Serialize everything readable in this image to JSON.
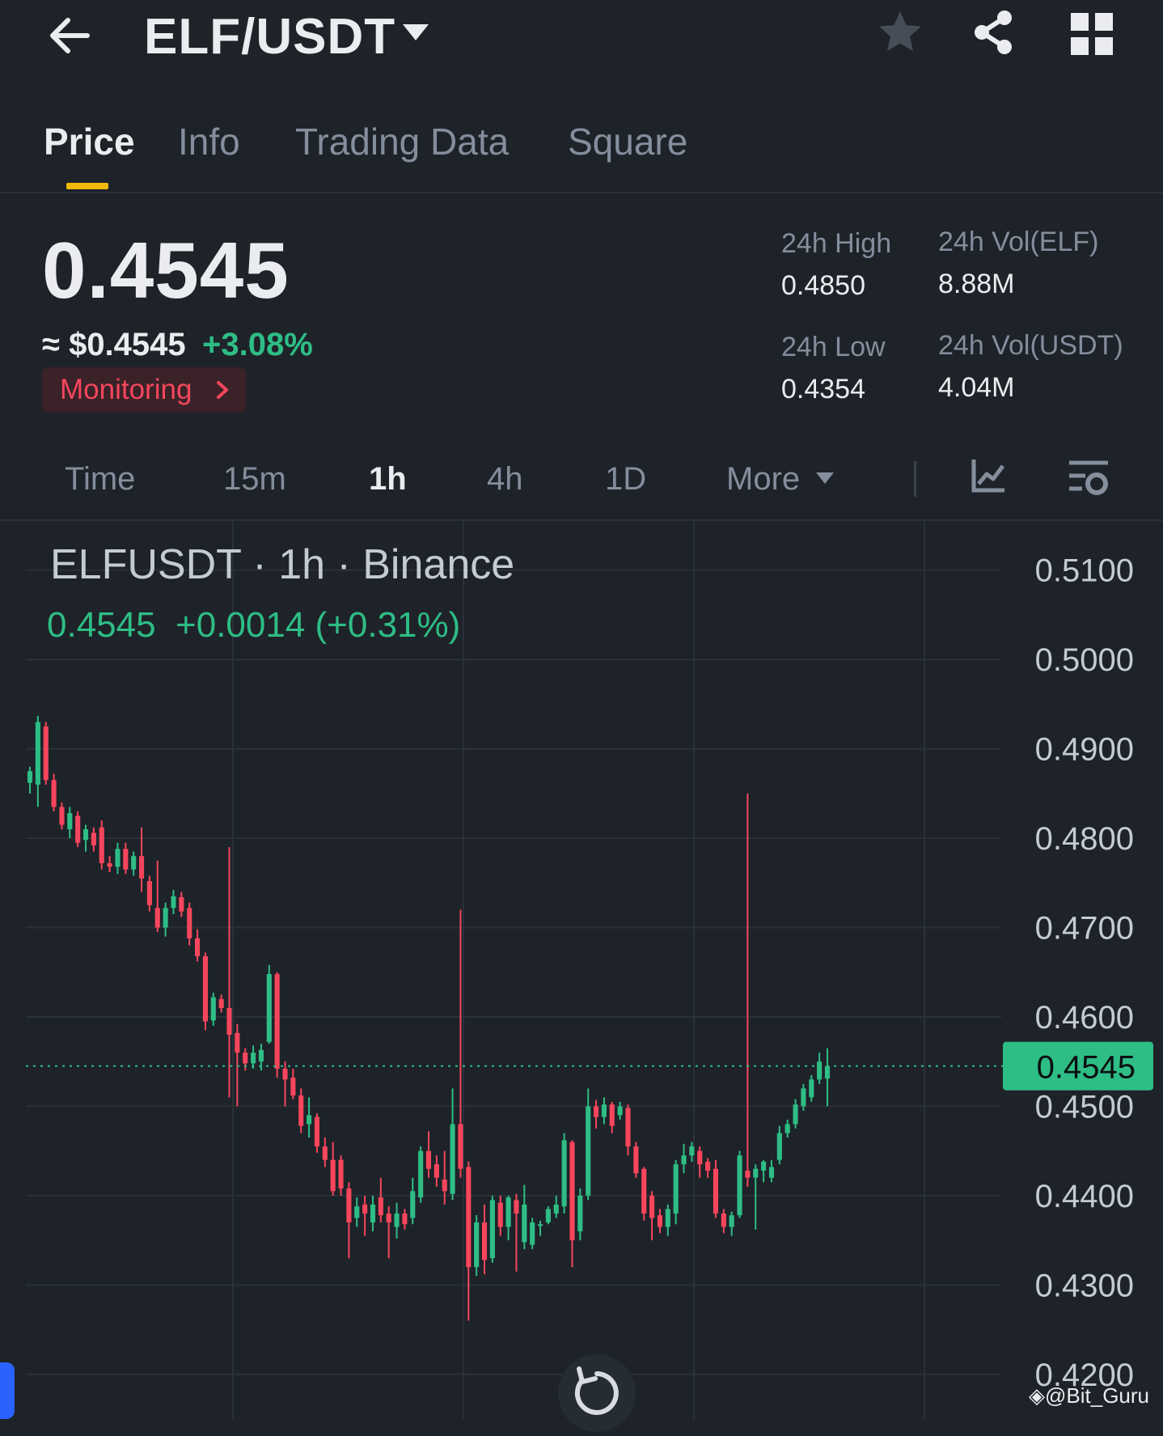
{
  "header": {
    "pair": "ELF/USDT"
  },
  "tabs": [
    {
      "label": "Price",
      "active": true
    },
    {
      "label": "Info",
      "active": false
    },
    {
      "label": "Trading Data",
      "active": false
    },
    {
      "label": "Square",
      "active": false
    }
  ],
  "ticker": {
    "last_price": "0.4545",
    "usd_price": "≈ $0.4545",
    "change_pct": "+3.08%",
    "monitoring_label": "Monitoring"
  },
  "stats": {
    "high_label": "24h High",
    "high_value": "0.4850",
    "low_label": "24h Low",
    "low_value": "0.4354",
    "vol_elf_label": "24h Vol(ELF)",
    "vol_elf_value": "8.88M",
    "vol_usdt_label": "24h Vol(USDT)",
    "vol_usdt_value": "4.04M"
  },
  "intervals": [
    {
      "label": "Time",
      "active": false
    },
    {
      "label": "15m",
      "active": false
    },
    {
      "label": "1h",
      "active": true
    },
    {
      "label": "4h",
      "active": false
    },
    {
      "label": "1D",
      "active": false
    },
    {
      "label": "More",
      "active": false
    }
  ],
  "chart_header": {
    "title": "ELFUSDT · 1h · Binance",
    "quote": "0.4545  +0.0014 (+0.31%)"
  },
  "watermark": "@Bit_Guru",
  "colors": {
    "up": "#2ebd85",
    "down": "#f6465d",
    "accent": "#f0b90b",
    "background": "#1e2329"
  },
  "chart_data": {
    "type": "candlestick",
    "ylim": [
      0.415,
      0.5155
    ],
    "yticks": [
      "0.5100",
      "0.5000",
      "0.4900",
      "0.4800",
      "0.4700",
      "0.4600",
      "0.4500",
      "0.4400",
      "0.4300",
      "0.4200"
    ],
    "current_price": "0.4545",
    "candles": [
      [
        0.4862,
        0.4875,
        0.485,
        0.488
      ],
      [
        0.486,
        0.493,
        0.4835,
        0.4937
      ],
      [
        0.4925,
        0.4865,
        0.486,
        0.493
      ],
      [
        0.4865,
        0.4835,
        0.483,
        0.4872
      ],
      [
        0.4835,
        0.4815,
        0.481,
        0.484
      ],
      [
        0.481,
        0.4828,
        0.48,
        0.4835
      ],
      [
        0.4825,
        0.4795,
        0.479,
        0.483
      ],
      [
        0.4798,
        0.481,
        0.4785,
        0.4815
      ],
      [
        0.4806,
        0.4792,
        0.4785,
        0.4812
      ],
      [
        0.4812,
        0.4772,
        0.4765,
        0.482
      ],
      [
        0.4772,
        0.4768,
        0.4762,
        0.478
      ],
      [
        0.4768,
        0.4788,
        0.476,
        0.4795
      ],
      [
        0.4788,
        0.4765,
        0.476,
        0.4795
      ],
      [
        0.4765,
        0.478,
        0.4758,
        0.4785
      ],
      [
        0.478,
        0.4755,
        0.474,
        0.4812
      ],
      [
        0.4752,
        0.4725,
        0.4718,
        0.4758
      ],
      [
        0.4722,
        0.47,
        0.4695,
        0.4775
      ],
      [
        0.47,
        0.4722,
        0.469,
        0.4728
      ],
      [
        0.4722,
        0.4735,
        0.4715,
        0.4742
      ],
      [
        0.4734,
        0.4718,
        0.4712,
        0.474
      ],
      [
        0.4722,
        0.4688,
        0.468,
        0.4728
      ],
      [
        0.4688,
        0.4668,
        0.4662,
        0.4698
      ],
      [
        0.4668,
        0.4595,
        0.4585,
        0.4672
      ],
      [
        0.4596,
        0.4622,
        0.459,
        0.4627
      ],
      [
        0.462,
        0.461,
        0.4605,
        0.4625
      ],
      [
        0.461,
        0.458,
        0.451,
        0.479
      ],
      [
        0.4582,
        0.456,
        0.45,
        0.4592
      ],
      [
        0.456,
        0.4548,
        0.454,
        0.4565
      ],
      [
        0.4548,
        0.456,
        0.4542,
        0.4568
      ],
      [
        0.455,
        0.4563,
        0.454,
        0.457
      ],
      [
        0.4572,
        0.4648,
        0.457,
        0.4658
      ],
      [
        0.4648,
        0.4542,
        0.4532,
        0.465
      ],
      [
        0.4542,
        0.453,
        0.45,
        0.455
      ],
      [
        0.4532,
        0.4512,
        0.4508,
        0.4542
      ],
      [
        0.4512,
        0.4478,
        0.447,
        0.452
      ],
      [
        0.448,
        0.449,
        0.4465,
        0.451
      ],
      [
        0.4488,
        0.4455,
        0.4448,
        0.4492
      ],
      [
        0.4455,
        0.444,
        0.4432,
        0.4465
      ],
      [
        0.444,
        0.4405,
        0.44,
        0.446
      ],
      [
        0.444,
        0.4408,
        0.44,
        0.4445
      ],
      [
        0.4408,
        0.437,
        0.433,
        0.4415
      ],
      [
        0.4375,
        0.4388,
        0.4365,
        0.4398
      ],
      [
        0.439,
        0.438,
        0.4355,
        0.44
      ],
      [
        0.437,
        0.439,
        0.436,
        0.44
      ],
      [
        0.4398,
        0.4378,
        0.437,
        0.442
      ],
      [
        0.438,
        0.437,
        0.433,
        0.4388
      ],
      [
        0.4365,
        0.438,
        0.4352,
        0.4392
      ],
      [
        0.438,
        0.4368,
        0.4362,
        0.4385
      ],
      [
        0.4375,
        0.4405,
        0.4368,
        0.442
      ],
      [
        0.4398,
        0.445,
        0.4392,
        0.4455
      ],
      [
        0.445,
        0.443,
        0.442,
        0.4472
      ],
      [
        0.4435,
        0.442,
        0.441,
        0.4445
      ],
      [
        0.4418,
        0.4405,
        0.439,
        0.445
      ],
      [
        0.4402,
        0.448,
        0.4395,
        0.452
      ],
      [
        0.448,
        0.443,
        0.442,
        0.472
      ],
      [
        0.4432,
        0.432,
        0.426,
        0.4438
      ],
      [
        0.432,
        0.437,
        0.431,
        0.4378
      ],
      [
        0.437,
        0.4328,
        0.4312,
        0.439
      ],
      [
        0.433,
        0.4395,
        0.4325,
        0.44
      ],
      [
        0.4392,
        0.4365,
        0.4355,
        0.44
      ],
      [
        0.4365,
        0.4398,
        0.435,
        0.44
      ],
      [
        0.4395,
        0.438,
        0.4315,
        0.4402
      ],
      [
        0.4348,
        0.439,
        0.434,
        0.4412
      ],
      [
        0.4345,
        0.437,
        0.434,
        0.4375
      ],
      [
        0.4368,
        0.4368,
        0.4355,
        0.4372
      ],
      [
        0.437,
        0.4385,
        0.4368,
        0.4388
      ],
      [
        0.438,
        0.439,
        0.4375,
        0.44
      ],
      [
        0.4388,
        0.4462,
        0.438,
        0.447
      ],
      [
        0.446,
        0.435,
        0.432,
        0.4462
      ],
      [
        0.436,
        0.44,
        0.435,
        0.4408
      ],
      [
        0.44,
        0.45,
        0.4395,
        0.452
      ],
      [
        0.45,
        0.4488,
        0.4475,
        0.4507
      ],
      [
        0.4488,
        0.4502,
        0.448,
        0.451
      ],
      [
        0.4502,
        0.4478,
        0.447,
        0.4505
      ],
      [
        0.449,
        0.45,
        0.4485,
        0.4505
      ],
      [
        0.4498,
        0.4455,
        0.4445,
        0.4502
      ],
      [
        0.4455,
        0.4425,
        0.442,
        0.446
      ],
      [
        0.443,
        0.438,
        0.4372,
        0.4432
      ],
      [
        0.44,
        0.4375,
        0.435,
        0.4405
      ],
      [
        0.4378,
        0.4365,
        0.4358,
        0.4385
      ],
      [
        0.4365,
        0.4385,
        0.4355,
        0.439
      ],
      [
        0.438,
        0.4435,
        0.4368,
        0.444
      ],
      [
        0.4435,
        0.4445,
        0.4425,
        0.4458
      ],
      [
        0.4445,
        0.4455,
        0.4438,
        0.446
      ],
      [
        0.445,
        0.4435,
        0.442,
        0.4455
      ],
      [
        0.4438,
        0.4428,
        0.442,
        0.4442
      ],
      [
        0.443,
        0.438,
        0.4375,
        0.444
      ],
      [
        0.438,
        0.4365,
        0.4358,
        0.4385
      ],
      [
        0.4365,
        0.4378,
        0.4355,
        0.4382
      ],
      [
        0.4378,
        0.4445,
        0.4375,
        0.445
      ],
      [
        0.4428,
        0.442,
        0.441,
        0.485
      ],
      [
        0.442,
        0.443,
        0.4362,
        0.4435
      ],
      [
        0.4428,
        0.4438,
        0.4415,
        0.444
      ],
      [
        0.442,
        0.4432,
        0.4415,
        0.444
      ],
      [
        0.444,
        0.447,
        0.4435,
        0.4478
      ],
      [
        0.447,
        0.448,
        0.4465,
        0.4485
      ],
      [
        0.448,
        0.4502,
        0.4475,
        0.4508
      ],
      [
        0.45,
        0.452,
        0.4495,
        0.4525
      ],
      [
        0.451,
        0.453,
        0.4505,
        0.4535
      ],
      [
        0.453,
        0.455,
        0.4525,
        0.456
      ],
      [
        0.4531,
        0.4545,
        0.45,
        0.4565
      ]
    ]
  }
}
